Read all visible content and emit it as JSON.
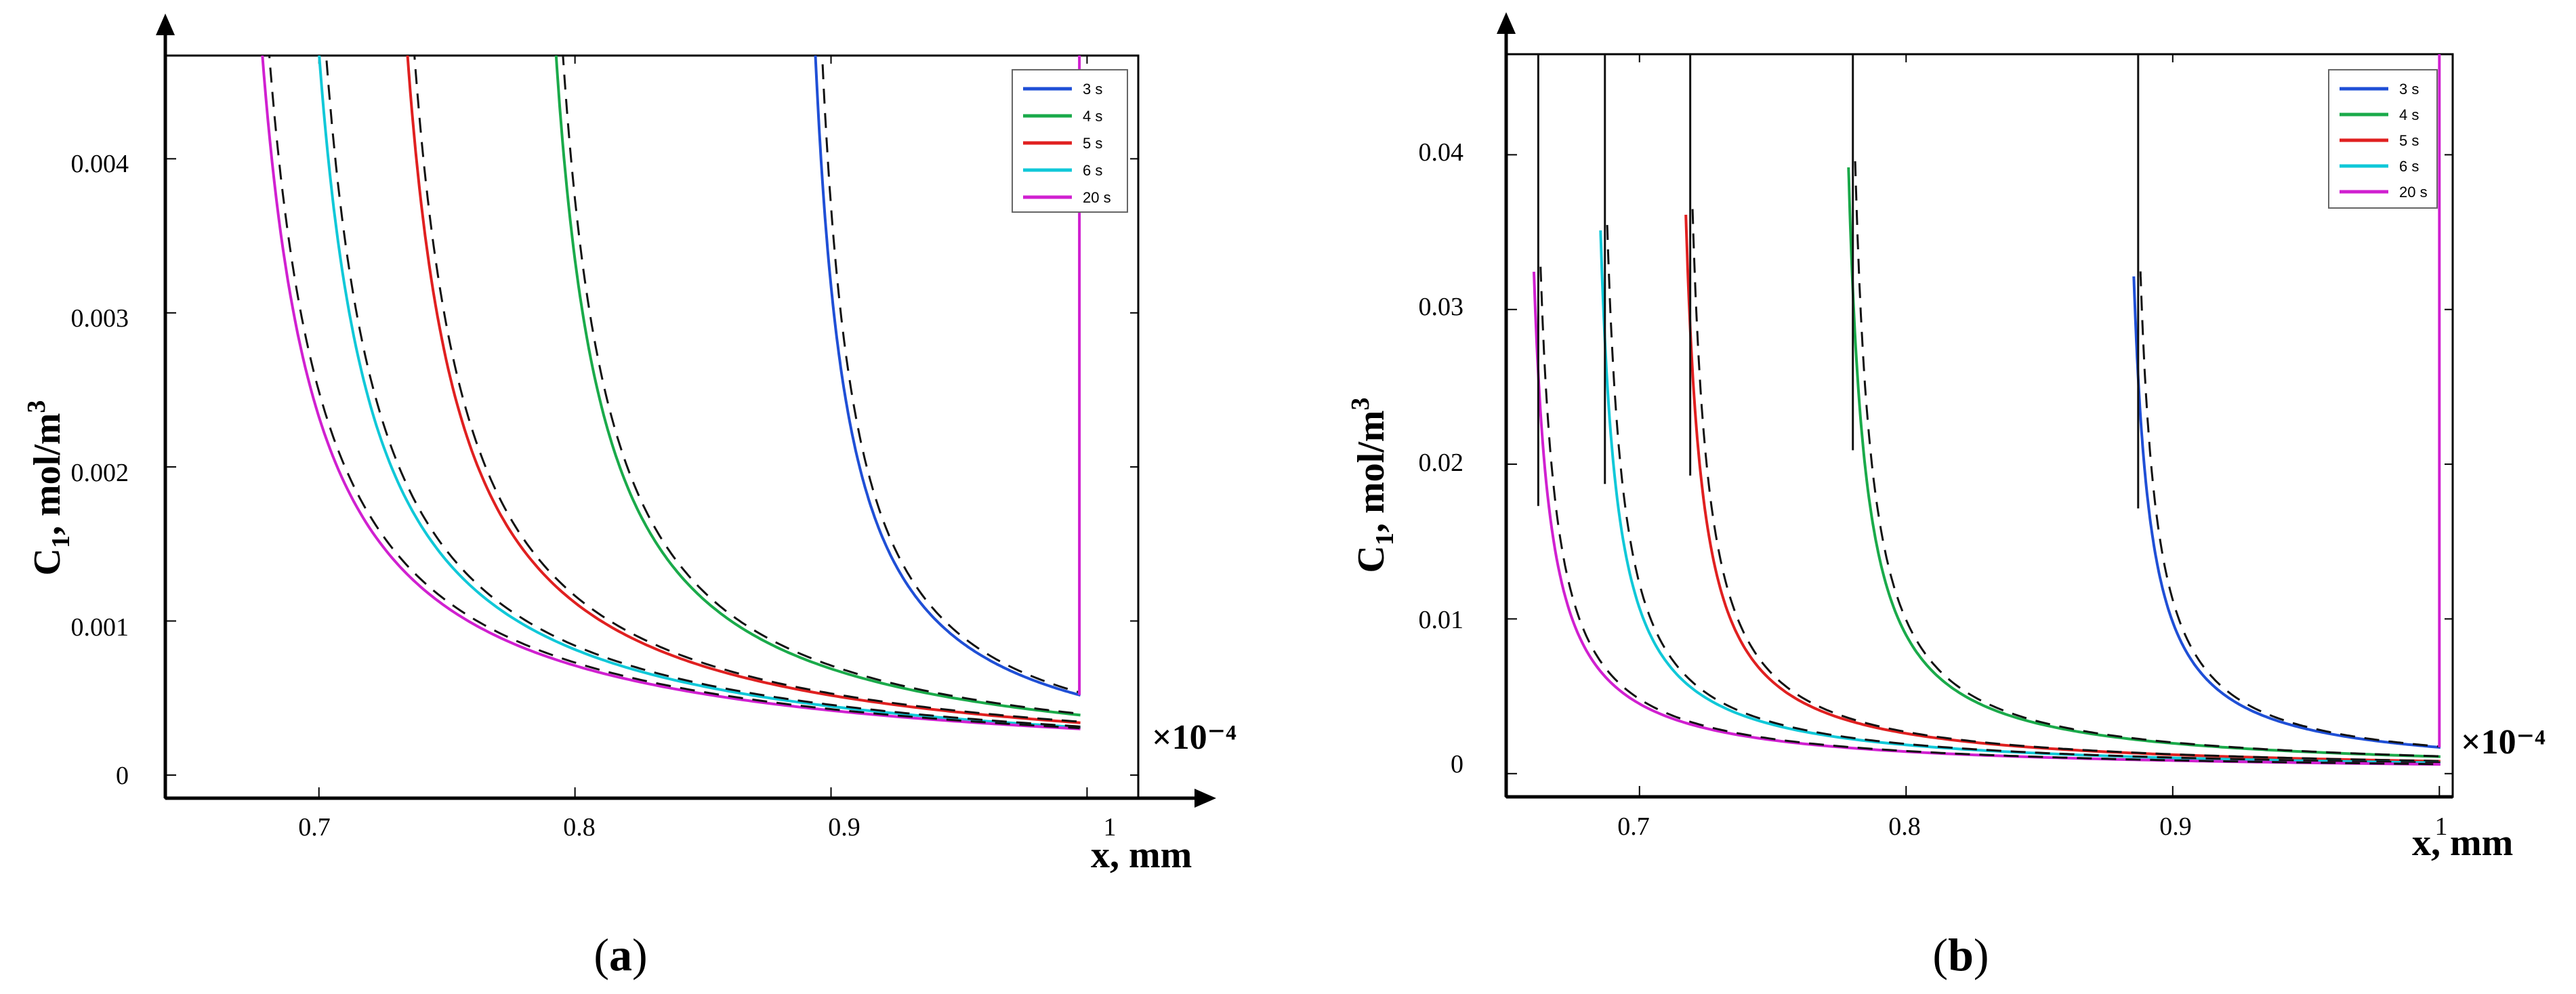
{
  "figure": {
    "panels": [
      "a",
      "b"
    ]
  },
  "chart_data": [
    {
      "id": "a",
      "type": "line",
      "panel_label": "a",
      "ylabel": "C1, mol/m3",
      "ylabel_main": "C",
      "ylabel_sub": "1",
      "ylabel_rest": ", mol/m",
      "ylabel_sup": "3",
      "xlabel": "x, mm",
      "x_scale_label": "×10⁻⁴",
      "xlim": [
        0.64,
        1.02
      ],
      "ylim": [
        -0.00015,
        0.00467
      ],
      "xticks": [
        0.7,
        0.8,
        0.9,
        1
      ],
      "xtick_labels": [
        "0.7",
        "0.8",
        "0.9",
        "1"
      ],
      "yticks": [
        0,
        0.001,
        0.002,
        0.003,
        0.004
      ],
      "ytick_labels": [
        "0",
        "0.001",
        "0.002",
        "0.003",
        "0.004"
      ],
      "series": [
        {
          "name": "3 s",
          "color": "#1f4fd6",
          "front": 0.887,
          "end_value": 0.00052
        },
        {
          "name": "4 s",
          "color": "#1aaa4a",
          "front": 0.78,
          "end_value": 0.00039
        },
        {
          "name": "5 s",
          "color": "#e02020",
          "front": 0.72,
          "end_value": 0.00034
        },
        {
          "name": "6 s",
          "color": "#10c8d8",
          "front": 0.685,
          "end_value": 0.00031
        },
        {
          "name": "20 s",
          "color": "#d020d0",
          "front": 0.662,
          "end_value": 0.0003
        }
      ],
      "reference_style": "black dashed (analytical)",
      "vertical_edge": {
        "x": 0.997,
        "color": "#d020d0"
      },
      "legend_position": "top-right"
    },
    {
      "id": "b",
      "type": "line",
      "panel_label": "b",
      "ylabel": "C1, mol/m3",
      "ylabel_main": "C",
      "ylabel_sub": "1",
      "ylabel_rest": ", mol/m",
      "ylabel_sup": "3",
      "xlabel": "x, mm",
      "x_scale_label": "×10⁻⁴",
      "xlim": [
        0.65,
        1.005
      ],
      "ylim": [
        -0.0015,
        0.0465
      ],
      "xticks": [
        0.7,
        0.8,
        0.9,
        1
      ],
      "xtick_labels": [
        "0.7",
        "0.8",
        "0.9",
        "1"
      ],
      "yticks": [
        0,
        0.01,
        0.02,
        0.03,
        0.04
      ],
      "ytick_labels": [
        "0",
        "0.01",
        "0.02",
        "0.03",
        "0.04"
      ],
      "series": [
        {
          "name": "3 s",
          "color": "#1f4fd6",
          "front": 0.885,
          "end_value": 0.0017
        },
        {
          "name": "4 s",
          "color": "#1aaa4a",
          "front": 0.778,
          "end_value": 0.0011
        },
        {
          "name": "5 s",
          "color": "#e02020",
          "front": 0.717,
          "end_value": 0.0008
        },
        {
          "name": "6 s",
          "color": "#10c8d8",
          "front": 0.685,
          "end_value": 0.0007
        },
        {
          "name": "20 s",
          "color": "#d020d0",
          "front": 0.66,
          "end_value": 0.0006
        }
      ],
      "reference_style": "black dashed (analytical)",
      "vertical_edge": {
        "x": 1.0,
        "color": "#d020d0"
      },
      "legend_position": "top-right"
    }
  ]
}
